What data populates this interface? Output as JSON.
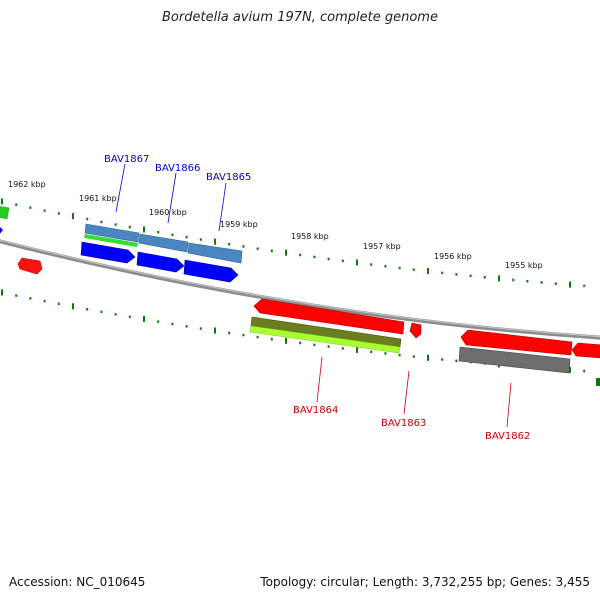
{
  "title": "Bordetella avium 197N, complete genome",
  "footer": {
    "accession": "Accession: NC_010645",
    "summary": "Topology: circular; Length: 3,732,255 bp; Genes: 3,455"
  },
  "colors": {
    "backbone": "#8a8a8a",
    "tick": "#0b7a0b",
    "forward_label": "#0000cc",
    "reverse_label": "#cc0000",
    "red": "#ff0000",
    "blue": "#0000ff",
    "steel": "#4a86c0",
    "green": "#22cc22",
    "olive": "#6b7d1e",
    "lime": "#aaff33",
    "gray": "#6e6e6e"
  },
  "scale": {
    "labels": [
      "1962 kbp",
      "1961 kbp",
      "1960 kbp",
      "1959 kbp",
      "1958 kbp",
      "1957 kbp",
      "1956 kbp",
      "1955 kbp"
    ]
  },
  "genes": {
    "forward": [
      "BAV1867",
      "BAV1866",
      "BAV1865"
    ],
    "reverse": [
      "BAV1864",
      "BAV1863",
      "BAV1862"
    ]
  }
}
